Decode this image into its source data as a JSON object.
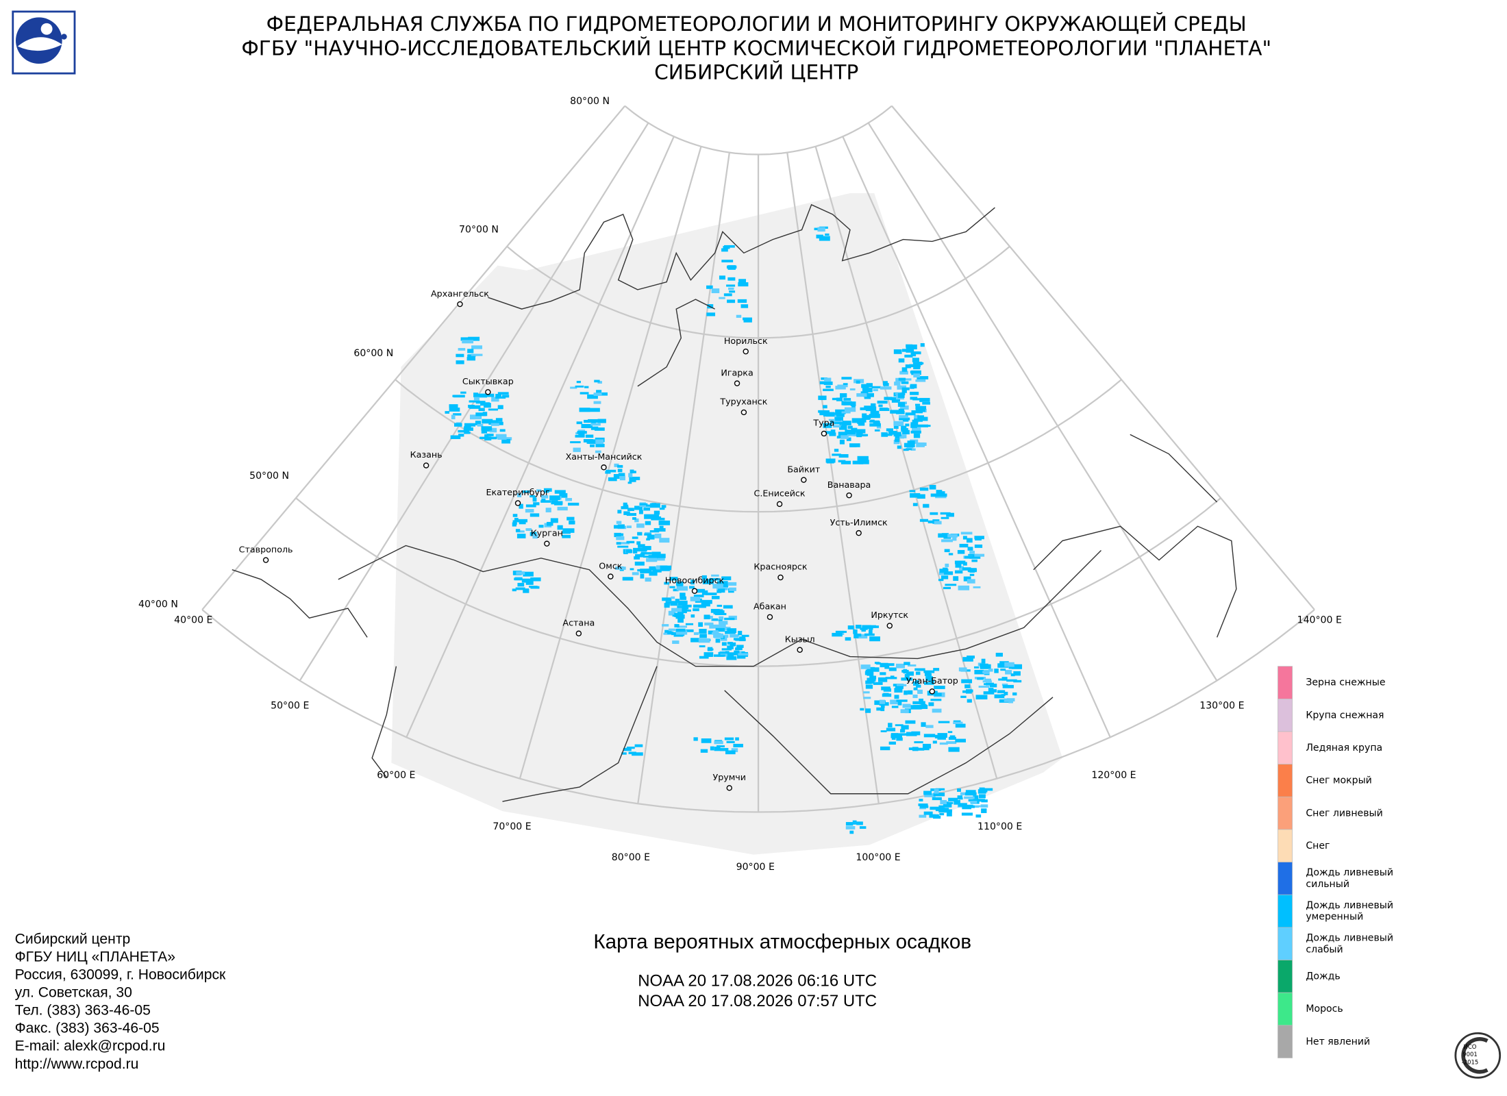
{
  "header": {
    "lines": [
      "ФЕДЕРАЛЬНАЯ СЛУЖБА ПО ГИДРОМЕТЕОРОЛОГИИ И МОНИТОРИНГУ ОКРУЖАЮЩЕЙ СРЕДЫ",
      "ФГБУ \"НАУЧНО-ИССЛЕДОВАТЕЛЬСКИЙ ЦЕНТР КОСМИЧЕСКОЙ ГИДРОМЕТЕОРОЛОГИИ \"ПЛАНЕТА\"",
      "СИБИРСКИЙ ЦЕНТР"
    ]
  },
  "map": {
    "lat_labels": [
      "80°00 N",
      "70°00 N",
      "60°00 N",
      "50°00 N",
      "40°00 N"
    ],
    "lon_labels": [
      "40°00 E",
      "50°00 E",
      "60°00 E",
      "70°00 E",
      "80°00 E",
      "90°00 E",
      "100°00 E",
      "110°00 E",
      "120°00 E",
      "130°00 E",
      "140°00 E"
    ],
    "cities": [
      "Архангельск",
      "Сыктывкар",
      "Казань",
      "Ставрополь",
      "Екатеринбург",
      "Курган",
      "Ханты-Мансийск",
      "Омск",
      "Астана",
      "Новосибирск",
      "Норильск",
      "Игарка",
      "Туруханск",
      "Тура",
      "Байкит",
      "Ванавара",
      "С.Енисейск",
      "Усть-Илимск",
      "Красноярск",
      "Абакан",
      "Кызыл",
      "Иркутск",
      "Улан-Батор",
      "Урумчи"
    ]
  },
  "title": "Карта вероятных атмосферных осадков",
  "passes": [
    "NOAA 20 17.08.2026  06:16 UTC",
    "NOAA 20 17.08.2026  07:57 UTC"
  ],
  "footer": {
    "lines": [
      "Сибирский центр",
      "ФГБУ НИЦ «ПЛАНЕТА»",
      "Россия, 630099, г. Новосибирск",
      "ул. Советская, 30",
      "Тел. (383) 363-46-05",
      "Факс. (383) 363-46-05",
      "E-mail: alexk@rcpod.ru",
      "http://www.rcpod.ru"
    ]
  },
  "legend": {
    "items": [
      {
        "label": [
          "Зерна снежные"
        ],
        "color": "#f5769c"
      },
      {
        "label": [
          "Крупа снежная"
        ],
        "color": "#dcc0dc"
      },
      {
        "label": [
          "Ледяная крупа"
        ],
        "color": "#ffc1cc"
      },
      {
        "label": [
          "Снег мокрый"
        ],
        "color": "#fb7f4a"
      },
      {
        "label": [
          "Снег ливневый"
        ],
        "color": "#fba07a"
      },
      {
        "label": [
          "Снег"
        ],
        "color": "#fddcb5"
      },
      {
        "label": [
          "Дождь ливневый",
          "сильный"
        ],
        "color": "#1f6fe6"
      },
      {
        "label": [
          "Дождь ливневый",
          "умеренный"
        ],
        "color": "#00bfff"
      },
      {
        "label": [
          "Дождь ливневый",
          "слабый"
        ],
        "color": "#5fcfff"
      },
      {
        "label": [
          "Дождь"
        ],
        "color": "#0aa86a"
      },
      {
        "label": [
          "Морось"
        ],
        "color": "#3de88a"
      },
      {
        "label": [
          "Нет явлений"
        ],
        "color": "#a8a8a8"
      }
    ]
  },
  "stamp": {
    "lines": [
      "ИСО",
      "9001",
      "-2015"
    ]
  }
}
